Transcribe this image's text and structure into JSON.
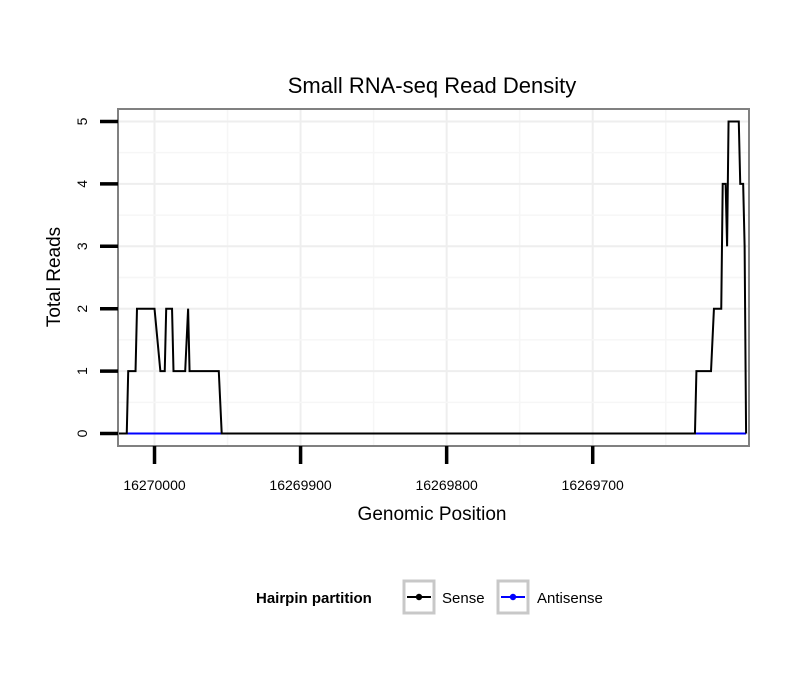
{
  "chart_data": {
    "type": "line",
    "title": "Small RNA-seq Read Density",
    "xlabel": "Genomic Position",
    "ylabel": "Total Reads",
    "xlim": [
      16270025,
      16269593
    ],
    "ylim": [
      -0.2,
      5.2
    ],
    "x_reversed": true,
    "x_ticks": [
      16270000,
      16269900,
      16269800,
      16269700
    ],
    "x_tick_labels": [
      "16270000",
      "16269900",
      "16269800",
      "16269700"
    ],
    "y_ticks": [
      0,
      1,
      2,
      3,
      4,
      5
    ],
    "y_tick_labels": [
      "0",
      "1",
      "2",
      "3",
      "4",
      "5"
    ],
    "grid": true,
    "legend_position": "bottom",
    "legend_title": "Hairpin partition",
    "series": [
      {
        "name": "Sense",
        "color": "#000000",
        "x": [
          16270025,
          16270019,
          16270018,
          16270013,
          16270012,
          16270000,
          16269996,
          16269993,
          16269992,
          16269988,
          16269987,
          16269979,
          16269977,
          16269976,
          16269975,
          16269956,
          16269954,
          16269630,
          16269629,
          16269619,
          16269617,
          16269612,
          16269611,
          16269609,
          16269608,
          16269607,
          16269606,
          16269600,
          16269599,
          16269597,
          16269596,
          16269595
        ],
        "y": [
          0,
          0,
          1,
          1,
          2,
          2,
          1,
          1,
          2,
          2,
          1,
          1,
          2,
          1,
          1,
          1,
          0,
          0,
          1,
          1,
          2,
          2,
          4,
          4,
          3,
          5,
          5,
          5,
          4,
          4,
          3,
          0
        ]
      },
      {
        "name": "Antisense",
        "color": "#0000ff",
        "x": [
          16270019,
          16269954,
          16269630,
          16269595
        ],
        "y": [
          0,
          0,
          0,
          0
        ]
      }
    ]
  }
}
